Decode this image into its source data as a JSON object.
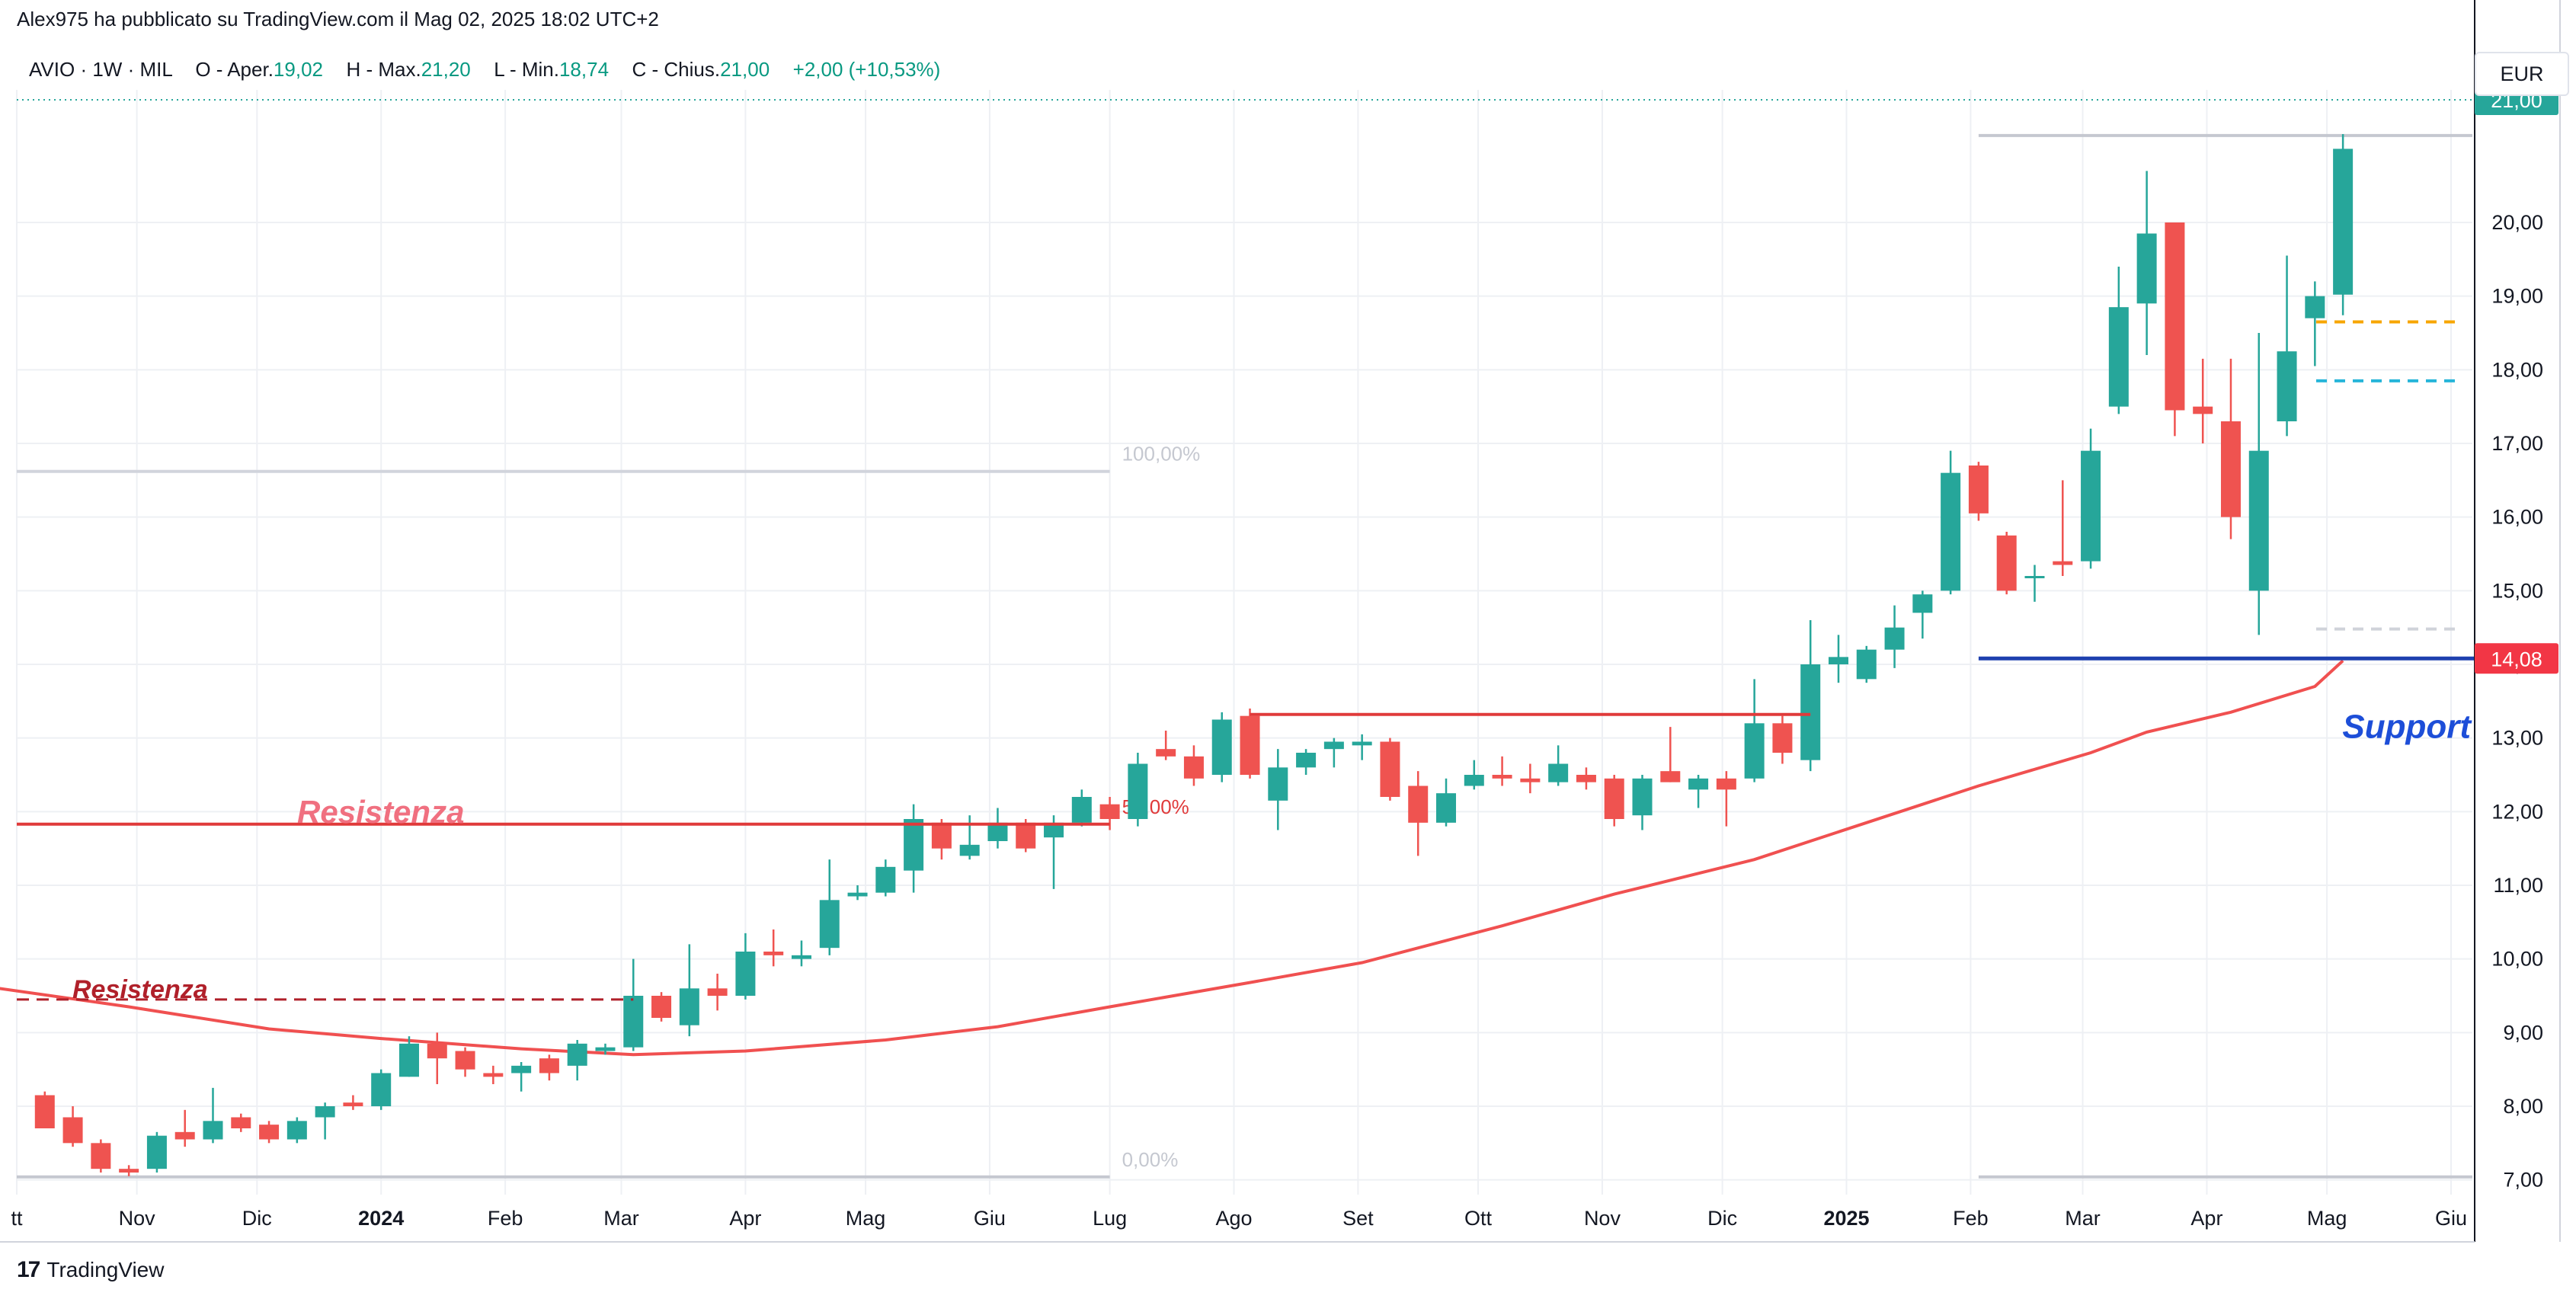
{
  "header": {
    "published_by": "Alex975 ha pubblicato su TradingView.com il Mag 02, 2025 18:02 UTC+2"
  },
  "legend": {
    "symbol": "AVIO",
    "interval": "1W",
    "exchange": "MIL",
    "open_label": "O - Aper.",
    "open_value": "19,02",
    "high_label": "H - Max.",
    "high_value": "21,20",
    "low_label": "L - Min.",
    "low_value": "18,74",
    "close_label": "C - Chius.",
    "close_value": "21,00",
    "change": "+2,00 (+10,53%)"
  },
  "currency_button": "EUR",
  "branding": {
    "logo_mark": "17",
    "name": "TradingView"
  },
  "colors": {
    "up": "#26a69a",
    "down": "#ef5350",
    "sma": "#f05050",
    "support": "#1e40af",
    "resistance": "#e03a3a"
  },
  "chart_data": {
    "type": "candlestick",
    "interval": "weekly",
    "ylim": [
      6.8,
      21.8
    ],
    "y_ticks": [
      "7,00",
      "8,00",
      "9,00",
      "10,00",
      "11,00",
      "12,00",
      "13,00",
      "14,00",
      "15,00",
      "16,00",
      "17,00",
      "18,00",
      "19,00",
      "20,00"
    ],
    "x_ticks": [
      {
        "label": "tt",
        "date": "2023-10-02",
        "bold": false
      },
      {
        "label": "Nov",
        "date": "2023-11-01",
        "bold": false
      },
      {
        "label": "Dic",
        "date": "2023-12-01",
        "bold": false
      },
      {
        "label": "2024",
        "date": "2024-01-01",
        "bold": true
      },
      {
        "label": "Feb",
        "date": "2024-02-01",
        "bold": false
      },
      {
        "label": "Mar",
        "date": "2024-03-01",
        "bold": false
      },
      {
        "label": "Apr",
        "date": "2024-04-01",
        "bold": false
      },
      {
        "label": "Mag",
        "date": "2024-05-01",
        "bold": false
      },
      {
        "label": "Giu",
        "date": "2024-06-01",
        "bold": false
      },
      {
        "label": "Lug",
        "date": "2024-07-01",
        "bold": false
      },
      {
        "label": "Ago",
        "date": "2024-08-01",
        "bold": false
      },
      {
        "label": "Set",
        "date": "2024-09-01",
        "bold": false
      },
      {
        "label": "Ott",
        "date": "2024-10-01",
        "bold": false
      },
      {
        "label": "Nov",
        "date": "2024-11-01",
        "bold": false
      },
      {
        "label": "Dic",
        "date": "2024-12-01",
        "bold": false
      },
      {
        "label": "2025",
        "date": "2025-01-01",
        "bold": true
      },
      {
        "label": "Feb",
        "date": "2025-02-01",
        "bold": false
      },
      {
        "label": "Mar",
        "date": "2025-03-01",
        "bold": false
      },
      {
        "label": "Apr",
        "date": "2025-04-01",
        "bold": false
      },
      {
        "label": "Mag",
        "date": "2025-05-01",
        "bold": false
      },
      {
        "label": "Giu",
        "date": "2025-06-01",
        "bold": false
      }
    ],
    "candles": [
      {
        "date": "2023-10-09",
        "o": 8.15,
        "h": 8.2,
        "l": 7.7,
        "c": 7.7
      },
      {
        "date": "2023-10-16",
        "o": 7.85,
        "h": 8.0,
        "l": 7.45,
        "c": 7.5
      },
      {
        "date": "2023-10-23",
        "o": 7.5,
        "h": 7.55,
        "l": 7.1,
        "c": 7.15
      },
      {
        "date": "2023-10-30",
        "o": 7.15,
        "h": 7.2,
        "l": 7.05,
        "c": 7.1
      },
      {
        "date": "2023-11-06",
        "o": 7.15,
        "h": 7.65,
        "l": 7.1,
        "c": 7.6
      },
      {
        "date": "2023-11-13",
        "o": 7.65,
        "h": 7.95,
        "l": 7.45,
        "c": 7.55
      },
      {
        "date": "2023-11-20",
        "o": 7.55,
        "h": 8.25,
        "l": 7.5,
        "c": 7.8
      },
      {
        "date": "2023-11-27",
        "o": 7.85,
        "h": 7.9,
        "l": 7.65,
        "c": 7.7
      },
      {
        "date": "2023-12-04",
        "o": 7.75,
        "h": 7.8,
        "l": 7.5,
        "c": 7.55
      },
      {
        "date": "2023-12-11",
        "o": 7.55,
        "h": 7.85,
        "l": 7.5,
        "c": 7.8
      },
      {
        "date": "2023-12-18",
        "o": 7.85,
        "h": 8.05,
        "l": 7.55,
        "c": 8.0
      },
      {
        "date": "2023-12-25",
        "o": 8.05,
        "h": 8.15,
        "l": 7.95,
        "c": 8.0
      },
      {
        "date": "2024-01-01",
        "o": 8.0,
        "h": 8.5,
        "l": 7.95,
        "c": 8.45
      },
      {
        "date": "2024-01-08",
        "o": 8.4,
        "h": 8.95,
        "l": 8.4,
        "c": 8.85
      },
      {
        "date": "2024-01-15",
        "o": 8.85,
        "h": 9.0,
        "l": 8.3,
        "c": 8.65
      },
      {
        "date": "2024-01-22",
        "o": 8.75,
        "h": 8.8,
        "l": 8.4,
        "c": 8.5
      },
      {
        "date": "2024-01-29",
        "o": 8.45,
        "h": 8.55,
        "l": 8.3,
        "c": 8.4
      },
      {
        "date": "2024-02-05",
        "o": 8.45,
        "h": 8.6,
        "l": 8.2,
        "c": 8.55
      },
      {
        "date": "2024-02-12",
        "o": 8.65,
        "h": 8.7,
        "l": 8.35,
        "c": 8.45
      },
      {
        "date": "2024-02-19",
        "o": 8.55,
        "h": 8.9,
        "l": 8.35,
        "c": 8.85
      },
      {
        "date": "2024-02-26",
        "o": 8.75,
        "h": 8.85,
        "l": 8.7,
        "c": 8.8
      },
      {
        "date": "2024-03-04",
        "o": 8.8,
        "h": 10.0,
        "l": 8.75,
        "c": 9.5
      },
      {
        "date": "2024-03-11",
        "o": 9.5,
        "h": 9.55,
        "l": 9.15,
        "c": 9.2
      },
      {
        "date": "2024-03-18",
        "o": 9.1,
        "h": 10.2,
        "l": 8.95,
        "c": 9.6
      },
      {
        "date": "2024-03-25",
        "o": 9.6,
        "h": 9.8,
        "l": 9.3,
        "c": 9.5
      },
      {
        "date": "2024-04-01",
        "o": 9.5,
        "h": 10.35,
        "l": 9.45,
        "c": 10.1
      },
      {
        "date": "2024-04-08",
        "o": 10.1,
        "h": 10.4,
        "l": 9.9,
        "c": 10.05
      },
      {
        "date": "2024-04-15",
        "o": 10.0,
        "h": 10.25,
        "l": 9.9,
        "c": 10.05
      },
      {
        "date": "2024-04-22",
        "o": 10.15,
        "h": 11.35,
        "l": 10.05,
        "c": 10.8
      },
      {
        "date": "2024-04-29",
        "o": 10.85,
        "h": 11.0,
        "l": 10.8,
        "c": 10.9
      },
      {
        "date": "2024-05-06",
        "o": 10.9,
        "h": 11.35,
        "l": 10.85,
        "c": 11.25
      },
      {
        "date": "2024-05-13",
        "o": 11.2,
        "h": 12.1,
        "l": 10.9,
        "c": 11.9
      },
      {
        "date": "2024-05-20",
        "o": 11.85,
        "h": 11.9,
        "l": 11.35,
        "c": 11.5
      },
      {
        "date": "2024-05-27",
        "o": 11.4,
        "h": 11.95,
        "l": 11.35,
        "c": 11.55
      },
      {
        "date": "2024-06-03",
        "o": 11.6,
        "h": 12.05,
        "l": 11.5,
        "c": 11.85
      },
      {
        "date": "2024-06-10",
        "o": 11.85,
        "h": 11.9,
        "l": 11.45,
        "c": 11.5
      },
      {
        "date": "2024-06-17",
        "o": 11.65,
        "h": 11.95,
        "l": 10.95,
        "c": 11.85
      },
      {
        "date": "2024-06-24",
        "o": 11.85,
        "h": 12.3,
        "l": 11.8,
        "c": 12.2
      },
      {
        "date": "2024-07-01",
        "o": 12.1,
        "h": 12.2,
        "l": 11.75,
        "c": 11.9
      },
      {
        "date": "2024-07-08",
        "o": 11.9,
        "h": 12.8,
        "l": 11.8,
        "c": 12.65
      },
      {
        "date": "2024-07-15",
        "o": 12.85,
        "h": 13.1,
        "l": 12.7,
        "c": 12.75
      },
      {
        "date": "2024-07-22",
        "o": 12.75,
        "h": 12.9,
        "l": 12.35,
        "c": 12.45
      },
      {
        "date": "2024-07-29",
        "o": 12.5,
        "h": 13.35,
        "l": 12.4,
        "c": 13.25
      },
      {
        "date": "2024-08-05",
        "o": 13.3,
        "h": 13.4,
        "l": 12.45,
        "c": 12.5
      },
      {
        "date": "2024-08-12",
        "o": 12.15,
        "h": 12.85,
        "l": 11.75,
        "c": 12.6
      },
      {
        "date": "2024-08-19",
        "o": 12.6,
        "h": 12.85,
        "l": 12.5,
        "c": 12.8
      },
      {
        "date": "2024-08-26",
        "o": 12.85,
        "h": 13.0,
        "l": 12.6,
        "c": 12.95
      },
      {
        "date": "2024-09-02",
        "o": 12.9,
        "h": 13.05,
        "l": 12.7,
        "c": 12.95
      },
      {
        "date": "2024-09-09",
        "o": 12.95,
        "h": 13.0,
        "l": 12.15,
        "c": 12.2
      },
      {
        "date": "2024-09-16",
        "o": 12.35,
        "h": 12.55,
        "l": 11.4,
        "c": 11.85
      },
      {
        "date": "2024-09-23",
        "o": 11.85,
        "h": 12.45,
        "l": 11.8,
        "c": 12.25
      },
      {
        "date": "2024-09-30",
        "o": 12.35,
        "h": 12.7,
        "l": 12.3,
        "c": 12.5
      },
      {
        "date": "2024-10-07",
        "o": 12.5,
        "h": 12.75,
        "l": 12.35,
        "c": 12.45
      },
      {
        "date": "2024-10-14",
        "o": 12.45,
        "h": 12.65,
        "l": 12.25,
        "c": 12.4
      },
      {
        "date": "2024-10-21",
        "o": 12.4,
        "h": 12.9,
        "l": 12.35,
        "c": 12.65
      },
      {
        "date": "2024-10-28",
        "o": 12.5,
        "h": 12.6,
        "l": 12.3,
        "c": 12.4
      },
      {
        "date": "2024-11-04",
        "o": 12.45,
        "h": 12.5,
        "l": 11.8,
        "c": 11.9
      },
      {
        "date": "2024-11-11",
        "o": 11.95,
        "h": 12.5,
        "l": 11.75,
        "c": 12.45
      },
      {
        "date": "2024-11-18",
        "o": 12.55,
        "h": 13.15,
        "l": 12.4,
        "c": 12.4
      },
      {
        "date": "2024-11-25",
        "o": 12.3,
        "h": 12.5,
        "l": 12.05,
        "c": 12.45
      },
      {
        "date": "2024-12-02",
        "o": 12.45,
        "h": 12.55,
        "l": 11.8,
        "c": 12.3
      },
      {
        "date": "2024-12-09",
        "o": 12.45,
        "h": 13.8,
        "l": 12.4,
        "c": 13.2
      },
      {
        "date": "2024-12-16",
        "o": 13.2,
        "h": 13.3,
        "l": 12.65,
        "c": 12.8
      },
      {
        "date": "2024-12-23",
        "o": 12.7,
        "h": 14.6,
        "l": 12.55,
        "c": 14.0
      },
      {
        "date": "2024-12-30",
        "o": 14.0,
        "h": 14.4,
        "l": 13.75,
        "c": 14.1
      },
      {
        "date": "2025-01-06",
        "o": 13.8,
        "h": 14.25,
        "l": 13.75,
        "c": 14.2
      },
      {
        "date": "2025-01-13",
        "o": 14.2,
        "h": 14.8,
        "l": 13.95,
        "c": 14.5
      },
      {
        "date": "2025-01-20",
        "o": 14.7,
        "h": 15.0,
        "l": 14.35,
        "c": 14.95
      },
      {
        "date": "2025-01-27",
        "o": 15.0,
        "h": 16.9,
        "l": 14.95,
        "c": 16.6
      },
      {
        "date": "2025-02-03",
        "o": 16.7,
        "h": 16.75,
        "l": 15.95,
        "c": 16.05
      },
      {
        "date": "2025-02-10",
        "o": 15.75,
        "h": 15.8,
        "l": 14.95,
        "c": 15.0
      },
      {
        "date": "2025-02-17",
        "o": 15.2,
        "h": 15.35,
        "l": 14.85,
        "c": 15.2
      },
      {
        "date": "2025-02-24",
        "o": 15.4,
        "h": 16.5,
        "l": 15.2,
        "c": 15.35
      },
      {
        "date": "2025-03-03",
        "o": 15.4,
        "h": 17.2,
        "l": 15.3,
        "c": 16.9
      },
      {
        "date": "2025-03-10",
        "o": 17.5,
        "h": 19.4,
        "l": 17.4,
        "c": 18.85
      },
      {
        "date": "2025-03-17",
        "o": 18.9,
        "h": 20.7,
        "l": 18.2,
        "c": 19.85
      },
      {
        "date": "2025-03-24",
        "o": 20.0,
        "h": 20.0,
        "l": 17.1,
        "c": 17.45
      },
      {
        "date": "2025-03-31",
        "o": 17.5,
        "h": 18.15,
        "l": 17.0,
        "c": 17.4
      },
      {
        "date": "2025-04-07",
        "o": 17.3,
        "h": 18.15,
        "l": 15.7,
        "c": 16.0
      },
      {
        "date": "2025-04-14",
        "o": 15.0,
        "h": 18.5,
        "l": 14.4,
        "c": 16.9
      },
      {
        "date": "2025-04-21",
        "o": 17.3,
        "h": 19.55,
        "l": 17.1,
        "c": 18.25
      },
      {
        "date": "2025-04-28",
        "o": 18.7,
        "h": 19.2,
        "l": 18.05,
        "c": 19.0
      },
      {
        "date": "2025-05-05",
        "o": 19.02,
        "h": 21.2,
        "l": 18.74,
        "c": 21.0
      }
    ],
    "sma": {
      "color": "#f05050",
      "points": [
        [
          "2023-09-25",
          9.62
        ],
        [
          "2023-10-30",
          9.35
        ],
        [
          "2023-12-04",
          9.05
        ],
        [
          "2024-01-01",
          8.92
        ],
        [
          "2024-02-05",
          8.78
        ],
        [
          "2024-03-04",
          8.7
        ],
        [
          "2024-04-01",
          8.75
        ],
        [
          "2024-05-06",
          8.9
        ],
        [
          "2024-06-03",
          9.08
        ],
        [
          "2024-07-01",
          9.35
        ],
        [
          "2024-08-05",
          9.68
        ],
        [
          "2024-09-02",
          9.95
        ],
        [
          "2024-10-07",
          10.45
        ],
        [
          "2024-11-04",
          10.88
        ],
        [
          "2024-12-09",
          11.35
        ],
        [
          "2025-01-06",
          11.85
        ],
        [
          "2025-02-03",
          12.35
        ],
        [
          "2025-03-03",
          12.8
        ],
        [
          "2025-03-17",
          13.08
        ],
        [
          "2025-04-07",
          13.35
        ],
        [
          "2025-04-28",
          13.7
        ],
        [
          "2025-05-05",
          14.05
        ]
      ]
    },
    "last_value_tag": "21,00",
    "current_tag": "14,08",
    "support": {
      "value": 14.08,
      "x_start": "2025-02-03",
      "label": "Support"
    },
    "resistances": [
      {
        "value": 11.83,
        "style": "solid",
        "label": "Resistenza"
      },
      {
        "value": 9.45,
        "style": "dashed",
        "label": "Resistenza"
      }
    ],
    "resistance_upper": {
      "value": 13.32,
      "x_start": "2024-08-05",
      "x_end": "2024-12-23"
    },
    "fibonacci": {
      "level_100": {
        "value": 16.62,
        "label": "100,00%"
      },
      "level_50": {
        "value": 11.83,
        "label": "50,00%"
      },
      "level_0": {
        "value": 7.04,
        "label": "0,00%"
      },
      "x_end": "2024-07-01"
    },
    "second_range": {
      "high": 21.18,
      "low": 7.04,
      "x_start": "2025-02-03"
    },
    "dashed_marks": [
      {
        "value": 18.65,
        "color": "#f7a600"
      },
      {
        "value": 17.85,
        "color": "#26b5d9"
      },
      {
        "value": 14.48,
        "color": "#d0d3da"
      }
    ]
  }
}
